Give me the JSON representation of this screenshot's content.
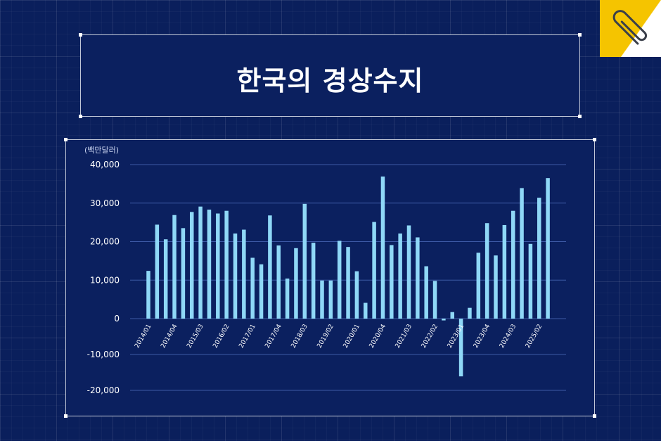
{
  "title": "한국의 경상수지",
  "colors": {
    "background": "#0a1f5c",
    "bar": "#8fd8f7",
    "accent": "#f5c400",
    "grid": "#3d5aa6"
  },
  "icons": {
    "corner_tab": "paperclip-icon"
  },
  "chart_data": {
    "type": "bar",
    "unit_label": "(백만달러)",
    "ylim": [
      -20000,
      40000
    ],
    "y_ticks": [
      {
        "value": 40000,
        "label": "40,000"
      },
      {
        "value": 30000,
        "label": "30,000"
      },
      {
        "value": 20000,
        "label": "20,000"
      },
      {
        "value": 10000,
        "label": "10,000"
      },
      {
        "value": 0,
        "label": "0"
      },
      {
        "value": -10000,
        "label": "-10,000"
      },
      {
        "value": -20000,
        "label": "-20,000"
      }
    ],
    "grid": true,
    "x_tick_labels": [
      "2014/01",
      "2014/04",
      "2015/03",
      "2016/02",
      "2017/01",
      "2017/04",
      "2018/03",
      "2019/02",
      "2020/01",
      "2020/04",
      "2021/03",
      "2022/02",
      "2023/01",
      "2023/04",
      "2024/03",
      "2025/02"
    ],
    "x_tick_positions": [
      0,
      3,
      6,
      9,
      12,
      15,
      18,
      21,
      24,
      27,
      30,
      33,
      36,
      39,
      42,
      45
    ],
    "values": [
      12400,
      24400,
      20600,
      26900,
      23500,
      27700,
      29100,
      28300,
      27300,
      28000,
      22100,
      23100,
      15800,
      14100,
      26800,
      19000,
      10400,
      18300,
      29800,
      19700,
      9900,
      9900,
      20200,
      18600,
      12300,
      4100,
      25100,
      36900,
      19100,
      22100,
      24200,
      21100,
      13600,
      9800,
      -500,
      1700,
      -16100,
      2800,
      17100,
      24800,
      16400,
      24300,
      28000,
      33900,
      19400,
      31400,
      36500
    ]
  }
}
